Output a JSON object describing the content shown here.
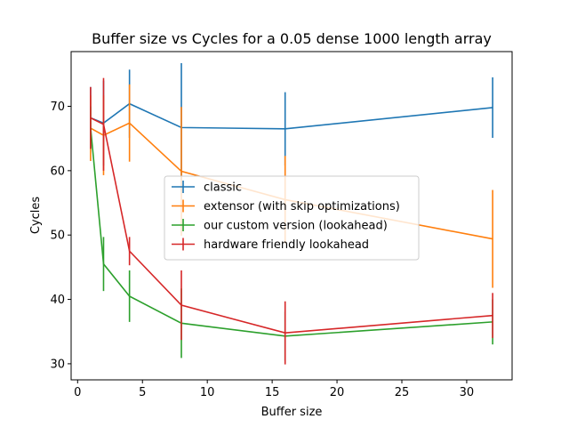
{
  "chart_data": {
    "type": "line",
    "title": "Buffer size vs Cycles for a 0.05 dense 1000 length array",
    "xlabel": "Buffer size",
    "ylabel": "Cycles",
    "x": [
      1,
      2,
      4,
      8,
      16,
      32
    ],
    "xlim": [
      -0.5,
      33.5
    ],
    "ylim": [
      27.5,
      78.5
    ],
    "xticks": [
      0,
      5,
      10,
      15,
      20,
      25,
      30
    ],
    "yticks": [
      30,
      40,
      50,
      60,
      70
    ],
    "grid": false,
    "legend_position": "center",
    "series": [
      {
        "name": "classic",
        "color": "#1f77b4",
        "values": [
          68.2,
          67.4,
          70.4,
          66.7,
          66.5,
          69.8
        ],
        "errors": [
          4.8,
          6.6,
          5.3,
          10.0,
          5.7,
          4.7
        ]
      },
      {
        "name": "extensor (with skip optimizations)",
        "color": "#ff7f0e",
        "values": [
          66.6,
          65.5,
          67.4,
          59.9,
          55.5,
          49.4
        ],
        "errors": [
          5.1,
          6.2,
          6.0,
          10.0,
          6.8,
          7.6
        ]
      },
      {
        "name": "our custom version (lookahead)",
        "color": "#2ca02c",
        "values": [
          66.7,
          45.5,
          40.5,
          36.3,
          34.3,
          36.5
        ],
        "errors": [
          3.3,
          4.2,
          4.0,
          5.4,
          3.8,
          3.5
        ]
      },
      {
        "name": "hardware friendly lookahead",
        "color": "#d62728",
        "values": [
          68.2,
          67.2,
          47.5,
          39.1,
          34.8,
          37.5
        ],
        "errors": [
          4.8,
          7.2,
          2.2,
          5.4,
          4.9,
          3.5
        ]
      }
    ]
  }
}
